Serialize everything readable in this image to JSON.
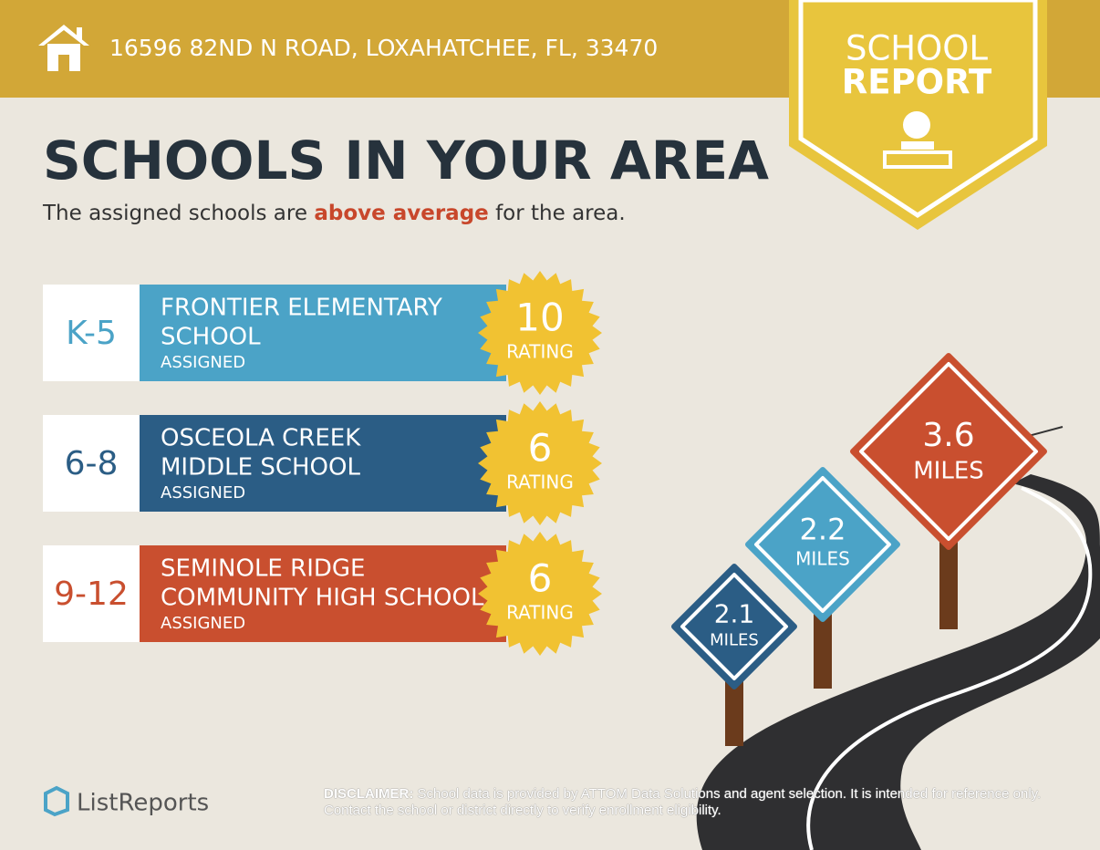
{
  "header": {
    "address": "16596 82ND N ROAD, LOXAHATCHEE, FL, 33470"
  },
  "badge": {
    "line1": "SCHOOL",
    "line2": "REPORT"
  },
  "title": "SCHOOLS IN YOUR AREA",
  "subtitle": {
    "before": "The assigned schools are",
    "highlight": "above average",
    "after": "for the area."
  },
  "schools": [
    {
      "grade": "K-5",
      "name_lines": [
        "FRONTIER ELEMENTARY",
        "SCHOOL"
      ],
      "status": "ASSIGNED",
      "rating": "10",
      "rating_label": "RATING"
    },
    {
      "grade": "6-8",
      "name_lines": [
        "OSCEOLA CREEK",
        "MIDDLE SCHOOL"
      ],
      "status": "ASSIGNED",
      "rating": "6",
      "rating_label": "RATING"
    },
    {
      "grade": "9-12",
      "name_lines": [
        "SEMINOLE RIDGE",
        "COMMUNITY HIGH SCHOOL"
      ],
      "status": "ASSIGNED",
      "rating": "6",
      "rating_label": "RATING"
    }
  ],
  "signs": [
    {
      "distance": "2.1",
      "unit": "MILES"
    },
    {
      "distance": "2.2",
      "unit": "MILES"
    },
    {
      "distance": "3.6",
      "unit": "MILES"
    }
  ],
  "footer": {
    "logo": "ListReports",
    "disclaimer_label": "DISCLAIMER:",
    "disclaimer": "School data is provided by ATTOM Data Solutions and agent selection. It is intended for reference only. Contact the school or district directly to verify enrollment eligibility."
  }
}
